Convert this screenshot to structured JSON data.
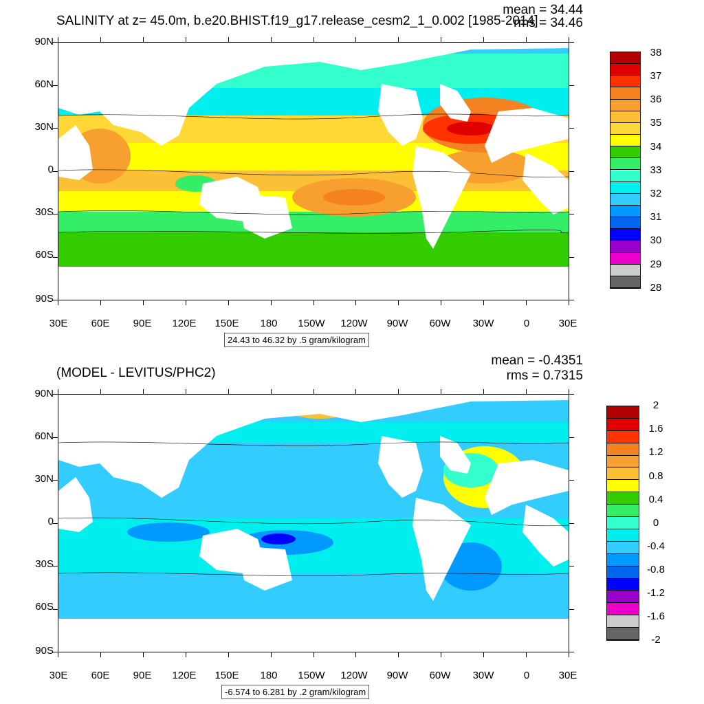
{
  "panels": [
    {
      "id": "top",
      "title": "SALINITY at z=  45.0m, b.e20.BHIST.f19_g17.release_cesm2_1_0.002 [1985-2014]",
      "mean_text": "mean = 34.44",
      "rms_text": "rms = 34.46",
      "range_text": "24.43 to 46.32 by .5 gram/kilogram",
      "y_labels": [
        "90N",
        "60N",
        "30N",
        "0",
        "30S",
        "60S",
        "90S"
      ],
      "x_labels": [
        "30E",
        "60E",
        "90E",
        "120E",
        "150E",
        "180",
        "150W",
        "120W",
        "90W",
        "60W",
        "30W",
        "0",
        "30E"
      ],
      "colorbar": {
        "colors": [
          "#b30000",
          "#e00000",
          "#ff3300",
          "#f58220",
          "#f7a030",
          "#fbc035",
          "#ffd836",
          "#ffff00",
          "#33cc00",
          "#33ee66",
          "#33ffcc",
          "#00eeee",
          "#33ccff",
          "#0099ff",
          "#0066ee",
          "#0000ff",
          "#9900cc",
          "#ee00cc",
          "#cccccc",
          "#666666"
        ],
        "labels": [
          "38",
          "37",
          "36",
          "35",
          "34",
          "33",
          "32",
          "31",
          "30",
          "29",
          "28"
        ]
      }
    },
    {
      "id": "bottom",
      "title": "(MODEL - LEVITUS/PHC2)",
      "mean_text": "mean = -0.4351",
      "rms_text": "rms = 0.7315",
      "range_text": "-6.574 to 6.281 by .2 gram/kilogram",
      "y_labels": [
        "90N",
        "60N",
        "30N",
        "0",
        "30S",
        "60S",
        "90S"
      ],
      "x_labels": [
        "30E",
        "60E",
        "90E",
        "120E",
        "150E",
        "180",
        "150W",
        "120W",
        "90W",
        "60W",
        "30W",
        "0",
        "30E"
      ],
      "colorbar": {
        "colors": [
          "#b30000",
          "#e00000",
          "#ff3300",
          "#f58220",
          "#f7a030",
          "#fbc035",
          "#ffff00",
          "#33cc00",
          "#33ee66",
          "#33ffcc",
          "#00eeee",
          "#33ccff",
          "#0099ff",
          "#0066ee",
          "#0000ff",
          "#9900cc",
          "#ee00cc",
          "#cccccc",
          "#666666"
        ],
        "labels": [
          "2",
          "1.6",
          "1.2",
          "0.8",
          "0.4",
          "0",
          "-0.4",
          "-0.8",
          "-1.2",
          "-1.6",
          "-2"
        ]
      }
    }
  ],
  "land_color": "#ffffff"
}
